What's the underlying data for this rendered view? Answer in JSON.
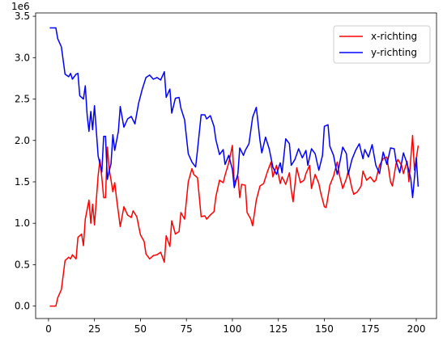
{
  "chart_data": {
    "type": "line",
    "title": "",
    "xlabel": "",
    "ylabel": "",
    "y_offset_label": "1e6",
    "xlim": [
      -7,
      211
    ],
    "ylim": [
      -150000,
      3540000
    ],
    "x_ticks": [
      0,
      25,
      50,
      75,
      100,
      125,
      150,
      175,
      200
    ],
    "y_ticks": [
      0,
      500000,
      1000000,
      1500000,
      2000000,
      2500000,
      3000000,
      3500000
    ],
    "y_tick_labels": [
      "0.0",
      "0.5",
      "1.0",
      "1.5",
      "2.0",
      "2.5",
      "3.0",
      "3.5"
    ],
    "grid": false,
    "legend_position": "top-right",
    "series": [
      {
        "name": "x-richting",
        "color": "#ff0000",
        "points": [
          [
            1,
            0
          ],
          [
            4,
            0
          ],
          [
            5,
            100000
          ],
          [
            7,
            200000
          ],
          [
            9,
            550000
          ],
          [
            11,
            590000
          ],
          [
            12,
            570000
          ],
          [
            13,
            620000
          ],
          [
            15,
            570000
          ],
          [
            16,
            830000
          ],
          [
            18,
            870000
          ],
          [
            19,
            730000
          ],
          [
            20,
            1050000
          ],
          [
            22,
            1280000
          ],
          [
            23,
            1000000
          ],
          [
            24,
            1230000
          ],
          [
            25,
            980000
          ],
          [
            27,
            1580000
          ],
          [
            28,
            1770000
          ],
          [
            29,
            1550000
          ],
          [
            30,
            1310000
          ],
          [
            31,
            1310000
          ],
          [
            32,
            1920000
          ],
          [
            33,
            1650000
          ],
          [
            34,
            1520000
          ],
          [
            35,
            1380000
          ],
          [
            36,
            1490000
          ],
          [
            37,
            1300000
          ],
          [
            39,
            960000
          ],
          [
            41,
            1200000
          ],
          [
            43,
            1100000
          ],
          [
            45,
            1070000
          ],
          [
            46,
            1150000
          ],
          [
            48,
            1080000
          ],
          [
            50,
            860000
          ],
          [
            52,
            780000
          ],
          [
            53,
            630000
          ],
          [
            55,
            570000
          ],
          [
            57,
            610000
          ],
          [
            59,
            620000
          ],
          [
            61,
            650000
          ],
          [
            63,
            530000
          ],
          [
            64,
            850000
          ],
          [
            66,
            720000
          ],
          [
            67,
            1030000
          ],
          [
            69,
            870000
          ],
          [
            71,
            900000
          ],
          [
            72,
            1130000
          ],
          [
            74,
            1050000
          ],
          [
            76,
            1500000
          ],
          [
            78,
            1660000
          ],
          [
            79,
            1590000
          ],
          [
            81,
            1550000
          ],
          [
            82,
            1320000
          ],
          [
            83,
            1080000
          ],
          [
            85,
            1090000
          ],
          [
            86,
            1050000
          ],
          [
            88,
            1100000
          ],
          [
            90,
            1140000
          ],
          [
            91,
            1320000
          ],
          [
            93,
            1520000
          ],
          [
            95,
            1490000
          ],
          [
            96,
            1580000
          ],
          [
            98,
            1730000
          ],
          [
            100,
            1940000
          ],
          [
            101,
            1490000
          ],
          [
            103,
            1570000
          ],
          [
            104,
            1310000
          ],
          [
            105,
            1470000
          ],
          [
            107,
            1460000
          ],
          [
            108,
            1130000
          ],
          [
            110,
            1050000
          ],
          [
            111,
            970000
          ],
          [
            113,
            1280000
          ],
          [
            115,
            1450000
          ],
          [
            117,
            1480000
          ],
          [
            119,
            1620000
          ],
          [
            121,
            1740000
          ],
          [
            122,
            1560000
          ],
          [
            124,
            1700000
          ],
          [
            126,
            1480000
          ],
          [
            127,
            1560000
          ],
          [
            129,
            1470000
          ],
          [
            131,
            1610000
          ],
          [
            132,
            1400000
          ],
          [
            133,
            1260000
          ],
          [
            135,
            1670000
          ],
          [
            137,
            1490000
          ],
          [
            139,
            1520000
          ],
          [
            140,
            1600000
          ],
          [
            142,
            1700000
          ],
          [
            143,
            1420000
          ],
          [
            145,
            1590000
          ],
          [
            147,
            1480000
          ],
          [
            148,
            1370000
          ],
          [
            150,
            1200000
          ],
          [
            151,
            1190000
          ],
          [
            153,
            1460000
          ],
          [
            155,
            1570000
          ],
          [
            157,
            1740000
          ],
          [
            158,
            1600000
          ],
          [
            160,
            1420000
          ],
          [
            162,
            1540000
          ],
          [
            163,
            1630000
          ],
          [
            165,
            1420000
          ],
          [
            166,
            1350000
          ],
          [
            168,
            1380000
          ],
          [
            170,
            1450000
          ],
          [
            171,
            1630000
          ],
          [
            173,
            1520000
          ],
          [
            175,
            1560000
          ],
          [
            177,
            1500000
          ],
          [
            178,
            1520000
          ],
          [
            180,
            1700000
          ],
          [
            182,
            1780000
          ],
          [
            184,
            1800000
          ],
          [
            186,
            1500000
          ],
          [
            187,
            1450000
          ],
          [
            189,
            1720000
          ],
          [
            190,
            1770000
          ],
          [
            192,
            1700000
          ],
          [
            193,
            1600000
          ],
          [
            195,
            1750000
          ],
          [
            196,
            1500000
          ],
          [
            198,
            2060000
          ],
          [
            199,
            1640000
          ],
          [
            201,
            1930000
          ]
        ]
      },
      {
        "name": "y-richting",
        "color": "#0000ff",
        "points": [
          [
            1,
            3360000
          ],
          [
            4,
            3360000
          ],
          [
            5,
            3230000
          ],
          [
            7,
            3130000
          ],
          [
            9,
            2800000
          ],
          [
            11,
            2770000
          ],
          [
            12,
            2810000
          ],
          [
            13,
            2740000
          ],
          [
            15,
            2800000
          ],
          [
            16,
            2810000
          ],
          [
            17,
            2540000
          ],
          [
            19,
            2500000
          ],
          [
            20,
            2660000
          ],
          [
            21,
            2310000
          ],
          [
            22,
            2110000
          ],
          [
            23,
            2350000
          ],
          [
            24,
            2130000
          ],
          [
            25,
            2420000
          ],
          [
            27,
            1810000
          ],
          [
            29,
            1620000
          ],
          [
            30,
            2050000
          ],
          [
            31,
            2050000
          ],
          [
            32,
            1530000
          ],
          [
            33,
            1630000
          ],
          [
            34,
            1720000
          ],
          [
            35,
            2070000
          ],
          [
            36,
            1880000
          ],
          [
            38,
            2110000
          ],
          [
            39,
            2410000
          ],
          [
            41,
            2160000
          ],
          [
            43,
            2260000
          ],
          [
            45,
            2290000
          ],
          [
            47,
            2200000
          ],
          [
            49,
            2450000
          ],
          [
            51,
            2620000
          ],
          [
            53,
            2760000
          ],
          [
            55,
            2790000
          ],
          [
            57,
            2740000
          ],
          [
            59,
            2760000
          ],
          [
            61,
            2730000
          ],
          [
            63,
            2830000
          ],
          [
            64,
            2520000
          ],
          [
            66,
            2620000
          ],
          [
            67,
            2330000
          ],
          [
            69,
            2510000
          ],
          [
            71,
            2520000
          ],
          [
            72,
            2390000
          ],
          [
            74,
            2250000
          ],
          [
            76,
            1840000
          ],
          [
            78,
            1740000
          ],
          [
            80,
            1680000
          ],
          [
            81,
            1880000
          ],
          [
            83,
            2310000
          ],
          [
            85,
            2310000
          ],
          [
            86,
            2260000
          ],
          [
            88,
            2300000
          ],
          [
            90,
            2170000
          ],
          [
            91,
            2010000
          ],
          [
            93,
            1830000
          ],
          [
            95,
            1890000
          ],
          [
            96,
            1710000
          ],
          [
            98,
            1820000
          ],
          [
            100,
            1650000
          ],
          [
            101,
            1430000
          ],
          [
            103,
            1600000
          ],
          [
            104,
            1910000
          ],
          [
            106,
            1820000
          ],
          [
            107,
            1880000
          ],
          [
            109,
            1960000
          ],
          [
            111,
            2280000
          ],
          [
            113,
            2400000
          ],
          [
            115,
            2000000
          ],
          [
            116,
            1850000
          ],
          [
            118,
            2040000
          ],
          [
            120,
            1900000
          ],
          [
            122,
            1680000
          ],
          [
            124,
            1590000
          ],
          [
            126,
            1730000
          ],
          [
            127,
            1610000
          ],
          [
            129,
            2020000
          ],
          [
            131,
            1960000
          ],
          [
            132,
            1700000
          ],
          [
            134,
            1770000
          ],
          [
            136,
            1900000
          ],
          [
            138,
            1790000
          ],
          [
            140,
            1880000
          ],
          [
            141,
            1700000
          ],
          [
            143,
            1900000
          ],
          [
            145,
            1840000
          ],
          [
            147,
            1640000
          ],
          [
            149,
            1820000
          ],
          [
            150,
            2170000
          ],
          [
            152,
            2190000
          ],
          [
            153,
            1930000
          ],
          [
            155,
            1820000
          ],
          [
            157,
            1590000
          ],
          [
            158,
            1690000
          ],
          [
            160,
            1920000
          ],
          [
            162,
            1840000
          ],
          [
            163,
            1590000
          ],
          [
            165,
            1770000
          ],
          [
            167,
            1880000
          ],
          [
            169,
            1960000
          ],
          [
            171,
            1780000
          ],
          [
            172,
            1890000
          ],
          [
            174,
            1800000
          ],
          [
            176,
            1950000
          ],
          [
            178,
            1700000
          ],
          [
            180,
            1600000
          ],
          [
            182,
            1860000
          ],
          [
            184,
            1710000
          ],
          [
            186,
            1910000
          ],
          [
            188,
            1900000
          ],
          [
            189,
            1750000
          ],
          [
            191,
            1610000
          ],
          [
            193,
            1850000
          ],
          [
            195,
            1720000
          ],
          [
            197,
            1540000
          ],
          [
            198,
            1310000
          ],
          [
            200,
            1790000
          ],
          [
            201,
            1450000
          ]
        ]
      }
    ]
  }
}
